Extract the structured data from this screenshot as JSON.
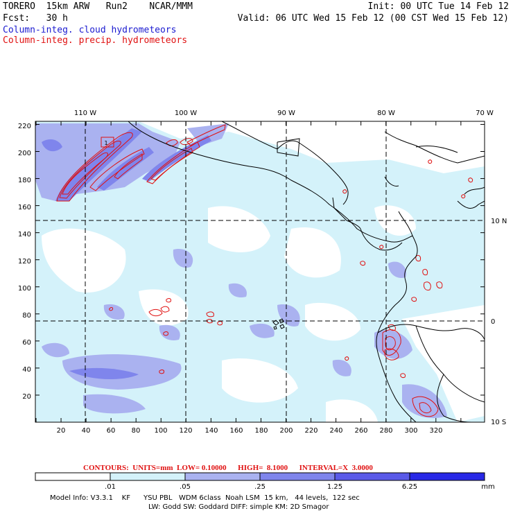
{
  "header": {
    "line1_left": "TORERO  15km ARW   Run2    NCAR/MMM",
    "line1_right": "Init: 00 UTC Tue 14 Feb 12",
    "line2_left": "Fcst:   30 h",
    "line2_right": "Valid: 06 UTC Wed 15 Feb 12 (00 CST Wed 15 Feb 12)",
    "legend_cloud": "Column-integ. cloud hydrometeors",
    "legend_precip": "Column-integ. precip. hydrometeors"
  },
  "map": {
    "top_lon_labels": [
      "110 W",
      "100 W",
      "90 W",
      "80 W",
      "70 W"
    ],
    "right_lat_labels": [
      "10 N",
      "0",
      "10 S"
    ],
    "x_ticks": [
      "20",
      "40",
      "60",
      "80",
      "100",
      "120",
      "140",
      "160",
      "180",
      "200",
      "220",
      "240",
      "260",
      "280",
      "300",
      "320"
    ],
    "y_ticks": [
      "220",
      "200",
      "180",
      "160",
      "140",
      "120",
      "100",
      "80",
      "60",
      "40",
      "20"
    ],
    "box_label": "1",
    "colors": {
      "land_line": "#000000",
      "grid": "#000000",
      "precip_contour": "#e01010"
    }
  },
  "contour_info": {
    "text": "CONTOURS:  UNITS=mm  LOW= 0.10000      HIGH=  8.1000      INTERVAL=X  3.0000"
  },
  "colorbar": {
    "labels": [
      ".01",
      ".05",
      ".25",
      "1.25",
      "6.25"
    ],
    "unit": "mm",
    "colors": [
      "#ffffff",
      "#d4f2fa",
      "#aab2f0",
      "#7f85ec",
      "#5a5ae8",
      "#2828e6",
      "#0000f0"
    ]
  },
  "footer": {
    "line1": "Model Info: V3.3.1    KF      YSU PBL   WDM 6class  Noah LSM  15 km,   44 levels,  122 sec",
    "line2": "LW: Godd SW: Goddard DIFF: simple KM: 2D Smagor"
  }
}
